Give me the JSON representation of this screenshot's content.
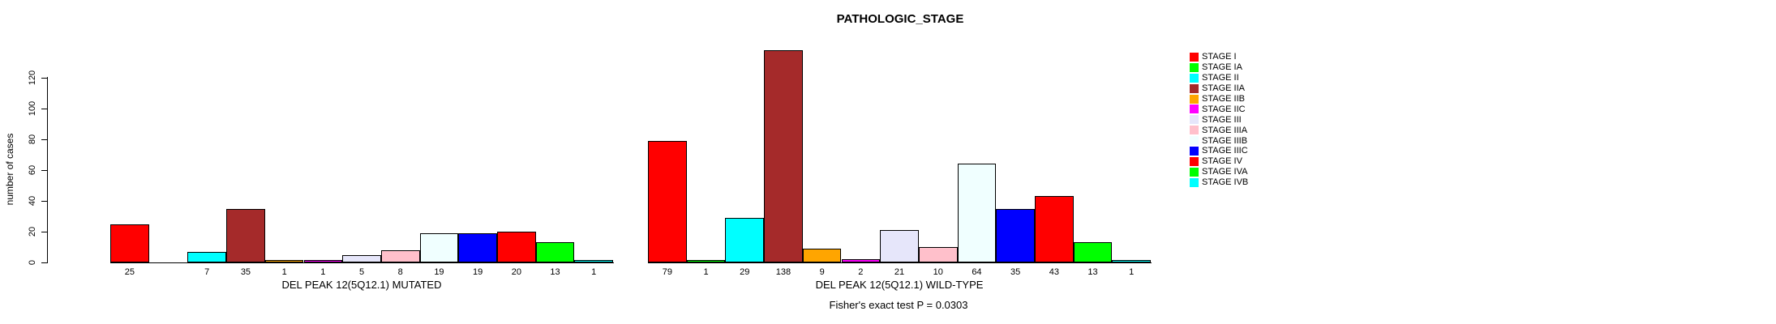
{
  "chart_data": {
    "type": "bar",
    "title": "PATHOLOGIC_STAGE",
    "ylabel": "number of cases",
    "yticks": [
      0,
      20,
      40,
      60,
      80,
      100,
      120
    ],
    "ylim": [
      0,
      140
    ],
    "grid": false,
    "legend_position": "right",
    "categories": [
      "STAGE I",
      "STAGE IA",
      "STAGE II",
      "STAGE IIA",
      "STAGE IIB",
      "STAGE IIC",
      "STAGE III",
      "STAGE IIIA",
      "STAGE IIIB",
      "STAGE IIIC",
      "STAGE IV",
      "STAGE IVA",
      "STAGE IVB"
    ],
    "colors": [
      "#FF0000",
      "#00FF00",
      "#00FFFF",
      "#A52A2A",
      "#FFA500",
      "#FF00FF",
      "#E6E6FA",
      "#FFC0CB",
      "#F0FFFF",
      "#0000FF",
      "#FF0000",
      "#00FF00",
      "#00FFFF"
    ],
    "series": [
      {
        "name": "DEL PEAK 12(5Q12.1) MUTATED",
        "values": [
          25,
          0,
          7,
          35,
          1,
          1,
          5,
          8,
          19,
          19,
          20,
          13,
          1
        ]
      },
      {
        "name": "DEL PEAK 12(5Q12.1) WILD-TYPE",
        "values": [
          79,
          1,
          29,
          138,
          9,
          2,
          21,
          10,
          64,
          35,
          43,
          13,
          1
        ]
      }
    ],
    "bar_value_labels": true,
    "zero_value_labels_hidden": true,
    "annotation": "Fisher's exact test P = 0.0303"
  }
}
